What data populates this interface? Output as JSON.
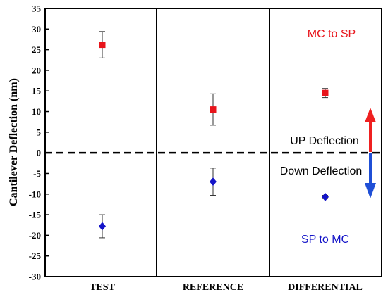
{
  "chart_data": {
    "type": "scatter",
    "ylabel": "Cantilever Deflection (nm)",
    "ylim": [
      -30,
      35
    ],
    "yticks": [
      35,
      30,
      25,
      20,
      15,
      10,
      5,
      0,
      -5,
      -10,
      -15,
      -20,
      -25,
      -30
    ],
    "categories": [
      "TEST",
      "REFERENCE",
      "DIFFERENTIAL"
    ],
    "series": [
      {
        "marker": "square",
        "color": "#e8141b",
        "values": [
          26.2,
          10.5,
          14.5
        ],
        "errors": [
          3.2,
          3.8,
          1.1
        ]
      },
      {
        "marker": "diamond",
        "color": "#1414c8",
        "values": [
          -17.8,
          -7.0,
          -10.7
        ],
        "errors": [
          2.8,
          3.3,
          0.4
        ]
      }
    ],
    "reference_line": {
      "y": 0,
      "style": "dashed"
    },
    "grid": false
  },
  "annotations": {
    "mc_to_sp": "MC to SP",
    "up_deflection": "UP Deflection",
    "down_deflection": "Down Deflection",
    "sp_to_mc": "SP to MC"
  },
  "colors": {
    "red": "#e8141b",
    "blue": "#1414c8",
    "arrow_up": "#ef2020",
    "arrow_down": "#1f4fd6"
  }
}
